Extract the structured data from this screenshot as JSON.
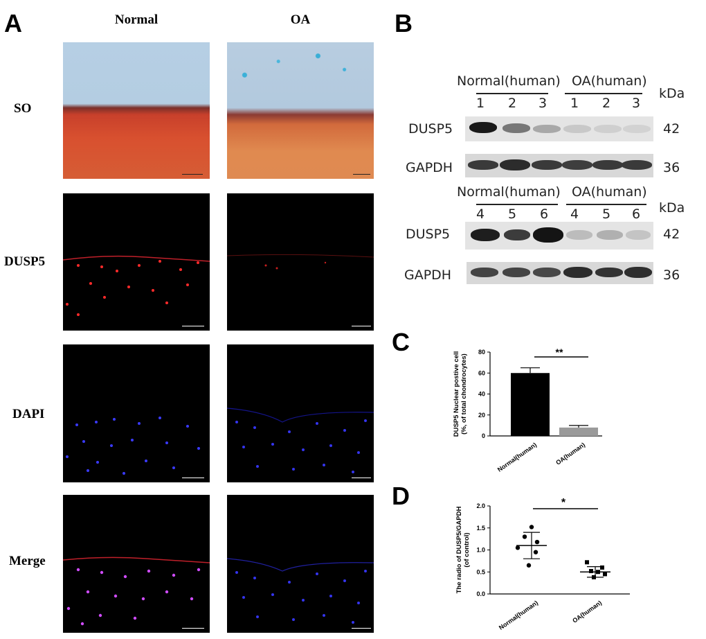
{
  "panelA": {
    "letter": "A",
    "columns": [
      "Normal",
      "OA"
    ],
    "rows": [
      "SO",
      "DUSP5",
      "DAPI",
      "Merge"
    ]
  },
  "panelB": {
    "letter": "B",
    "blot1": {
      "group_normal": "Normal(human)",
      "group_oa": "OA(human)",
      "lanes": [
        "1",
        "2",
        "3",
        "1",
        "2",
        "3"
      ],
      "unit": "kDa",
      "rows": [
        {
          "label": "DUSP5",
          "kda": "42"
        },
        {
          "label": "GAPDH",
          "kda": "36"
        }
      ]
    },
    "blot2": {
      "group_normal": "Normal(human)",
      "group_oa": "OA(human)",
      "lanes": [
        "4",
        "5",
        "6",
        "4",
        "5",
        "6"
      ],
      "unit": "kDa",
      "rows": [
        {
          "label": "DUSP5",
          "kda": "42"
        },
        {
          "label": "GAPDH",
          "kda": "36"
        }
      ]
    }
  },
  "panelC": {
    "letter": "C"
  },
  "panelD": {
    "letter": "D"
  },
  "chart_data": [
    {
      "panel": "C",
      "type": "bar",
      "categories": [
        "Normal(human)",
        "OA(human)"
      ],
      "values": [
        60,
        8
      ],
      "errors": [
        5,
        2
      ],
      "bar_colors": [
        "#000000",
        "#9a9a9a"
      ],
      "ylabel": "DUSP5 Nuclear postive cell\n(%, of total chondrocytes)",
      "ylim": [
        0,
        80
      ],
      "yticks": [
        0,
        20,
        40,
        60,
        80
      ],
      "significance": "**"
    },
    {
      "panel": "D",
      "type": "scatter",
      "categories": [
        "Normal(human)",
        "OA(human)"
      ],
      "points": [
        [
          1.52,
          1.3,
          1.18,
          1.05,
          0.95,
          0.65
        ],
        [
          0.72,
          0.6,
          0.52,
          0.5,
          0.45,
          0.38
        ]
      ],
      "point_shapes": [
        "circle",
        "square"
      ],
      "means": [
        1.1,
        0.5
      ],
      "sds": [
        0.3,
        0.12
      ],
      "ylabel": "The radio of DUSP5/GAPDH\n(of control)",
      "ylim": [
        0,
        2.0
      ],
      "yticks": [
        "0.0",
        "0.5",
        "1.0",
        "1.5",
        "2.0"
      ],
      "significance": "*"
    }
  ]
}
